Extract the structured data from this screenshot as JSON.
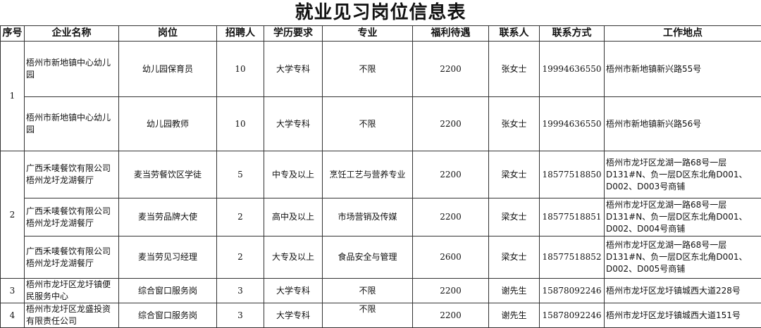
{
  "title": "就业见习岗位信息表",
  "headers": [
    "序号",
    "企业名称",
    "岗位",
    "招聘人",
    "学历要求",
    "专业",
    "福利待遇",
    "联系人",
    "联系方式",
    "工作地点"
  ],
  "groups": [
    {
      "no": "1",
      "rows": [
        {
          "company": "梧州市新地镇中心幼儿园",
          "position": "幼儿园保育员",
          "count": "10",
          "education": "大学专科",
          "major": "不限",
          "salary": "2200",
          "contact": "张女士",
          "phone": "19994636550",
          "address": "梧州市新地镇新兴路55号"
        },
        {
          "company": "梧州市新地镇中心幼儿园",
          "position": "幼儿园教师",
          "count": "10",
          "education": "大学专科",
          "major": "不限",
          "salary": "2200",
          "contact": "张女士",
          "phone": "19994636550",
          "address": "梧州市新地镇新兴路56号"
        }
      ]
    },
    {
      "no": "2",
      "rows": [
        {
          "company": "广西禾唛餐饮有限公司梧州龙圩龙湖餐厅",
          "position": "麦当劳餐饮区学徒",
          "count": "5",
          "education": "中专及以上",
          "major": "烹饪工艺与营养专业",
          "salary": "2200",
          "contact": "梁女士",
          "phone": "18577518850",
          "address": "梧州市龙圩区龙湖一路68号一层D131#N、负一层D区东北角D001、D002、D003号商铺"
        },
        {
          "company": "广西禾唛餐饮有限公司梧州龙圩龙湖餐厅",
          "position": "麦当劳品牌大使",
          "count": "2",
          "education": "高中及以上",
          "major": "市场营销及传媒",
          "salary": "2200",
          "contact": "梁女士",
          "phone": "18577518851",
          "address": "梧州市龙圩区龙湖一路68号一层D131#N、负一层D区东北角D001、D002、D004号商铺"
        },
        {
          "company": "广西禾唛餐饮有限公司梧州龙圩龙湖餐厅",
          "position": "麦当劳见习经理",
          "count": "2",
          "education": "大专及以上",
          "major": "食品安全与管理",
          "salary": "2600",
          "contact": "梁女士",
          "phone": "18577518852",
          "address": "梧州市龙圩区龙湖一路68号一层D131#N、负一层D区东北角D001、D002、D005号商铺"
        }
      ]
    },
    {
      "no": "3",
      "rows": [
        {
          "company": "梧州市龙圩区龙圩镇便民服务中心",
          "position": "综合窗口服务岗",
          "count": "3",
          "education": "大学专科",
          "major": "不限",
          "salary": "2200",
          "contact": "谢先生",
          "phone": "15878092246",
          "address": "梧州市龙圩区龙圩镇城西大道228号"
        }
      ]
    },
    {
      "no": "4",
      "rows": [
        {
          "company": "梧州市龙圩区龙盛投资有限责任公司",
          "position": "综合窗口服务岗",
          "count": "3",
          "education": "大学专科",
          "major": "不限",
          "salary": "2200",
          "contact": "谢先生",
          "phone": "15878092246",
          "address": "梧州市龙圩区龙圩镇城西大道151号"
        }
      ]
    }
  ]
}
